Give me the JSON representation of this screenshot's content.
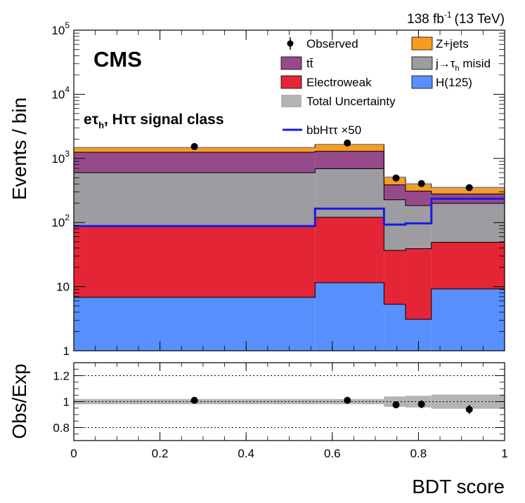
{
  "chart_data": {
    "type": "stacked-histogram",
    "log_scale": true,
    "experiment": "CMS",
    "lumi_label": "138 fb",
    "lumi_exponent": "-1",
    "energy_label": "(13 TeV)",
    "class_label": {
      "main": "e",
      "tau": "τ",
      "sub": "h",
      "rest": ", Hττ signal class"
    },
    "xlabel": "BDT score",
    "ylabel_top": "Events / bin",
    "ylabel_bottom": "Obs/Exp",
    "xlim": [
      0,
      1
    ],
    "ylim": [
      1,
      100000
    ],
    "ratio_ylim": [
      0.7,
      1.3
    ],
    "bin_edges": [
      0,
      0.56,
      0.72,
      0.77,
      0.83,
      1.0
    ],
    "x_ticks": [
      "0",
      "0.2",
      "0.4",
      "0.6",
      "0.8",
      "1"
    ],
    "y_ticks": [
      {
        "base": "1",
        "exp": ""
      },
      {
        "base": "10",
        "exp": ""
      },
      {
        "base": "10",
        "exp": "2"
      },
      {
        "base": "10",
        "exp": "3"
      },
      {
        "base": "10",
        "exp": "4"
      },
      {
        "base": "10",
        "exp": "5"
      }
    ],
    "ratio_ticks": [
      "0.8",
      "1",
      "1.2"
    ],
    "series": [
      {
        "name": "H(125)",
        "color": "#5790fc",
        "values": [
          6.8,
          11.5,
          5.3,
          3.1,
          9.2
        ]
      },
      {
        "name": "Electroweak",
        "color": "#e42536",
        "values": [
          82,
          109,
          31.5,
          36,
          40
        ]
      },
      {
        "name": "j→τh misid",
        "color": "#9c9ca1",
        "values": [
          510,
          570,
          190,
          145,
          150
        ]
      },
      {
        "name": "tt̄",
        "color": "#964a8b",
        "values": [
          650,
          600,
          160,
          125,
          80
        ]
      },
      {
        "name": "Z+jets",
        "color": "#f89c20",
        "values": [
          230,
          360,
          120,
          90,
          70
        ]
      }
    ],
    "signal": {
      "name": "bbHττ ×50",
      "color": "#1a1ae6",
      "values": [
        88,
        165,
        93,
        97,
        235
      ]
    },
    "observed": {
      "name": "Observed",
      "points": [
        {
          "x": 0.28,
          "y": 1530
        },
        {
          "x": 0.635,
          "y": 1740
        },
        {
          "x": 0.748,
          "y": 495
        },
        {
          "x": 0.807,
          "y": 405
        },
        {
          "x": 0.918,
          "y": 350
        }
      ]
    },
    "ratio_points": [
      {
        "x": 0.28,
        "y": 1.01,
        "err": 0.012
      },
      {
        "x": 0.635,
        "y": 1.01,
        "err": 0.012
      },
      {
        "x": 0.748,
        "y": 0.975,
        "err": 0.025
      },
      {
        "x": 0.807,
        "y": 0.98,
        "err": 0.03
      },
      {
        "x": 0.918,
        "y": 0.94,
        "err": 0.035
      }
    ],
    "ratio_uncertainty": [
      0.02,
      0.02,
      0.04,
      0.045,
      0.055
    ],
    "legend": {
      "observed": "Observed",
      "zjets": "Z+jets",
      "tt": "tt̄",
      "misid_prefix": "j→τ",
      "misid_sub": "h",
      "misid_suffix": " misid",
      "electroweak": "Electroweak",
      "higgs": "H(125)",
      "uncertainty": "Total Uncertainty",
      "signal": "bbHττ ×50"
    },
    "colors": {
      "uncertainty": "#b4b4b4"
    }
  }
}
